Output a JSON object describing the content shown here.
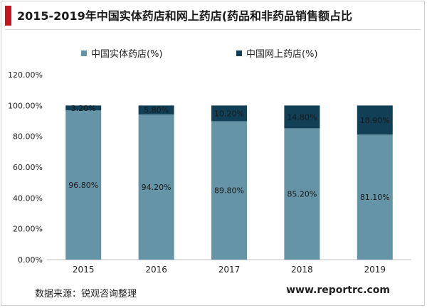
{
  "title": "2015-2019年中国实体药店和网上药店(药品和非药品销售额占比",
  "source": "数据来源：锐观咨询整理",
  "website": "www.reportrc.com",
  "colors": {
    "accent": "#c8141e",
    "physical": "#6494a5",
    "online": "#113f56"
  },
  "chart_data": {
    "type": "bar",
    "stacked": true,
    "categories": [
      "2015",
      "2016",
      "2017",
      "2018",
      "2019"
    ],
    "series": [
      {
        "name": "中国实体药店(%)",
        "values": [
          96.8,
          94.2,
          89.8,
          85.2,
          81.1
        ],
        "labels": [
          "96.80%",
          "94.20%",
          "89.80%",
          "85.20%",
          "81.10%"
        ],
        "color": "#6494a5"
      },
      {
        "name": "中国网上药店(%)",
        "values": [
          3.2,
          5.8,
          10.2,
          14.8,
          18.9
        ],
        "labels": [
          "3.20%",
          "5.80%",
          "10.20%",
          "14.80%",
          "18.90%"
        ],
        "color": "#113f56"
      }
    ],
    "ylim": [
      0,
      120
    ],
    "yticks": [
      "0.00%",
      "20.00%",
      "40.00%",
      "60.00%",
      "80.00%",
      "100.00%",
      "120.00%"
    ],
    "xlabel": "",
    "ylabel": "",
    "legend": "top",
    "grid": false
  }
}
